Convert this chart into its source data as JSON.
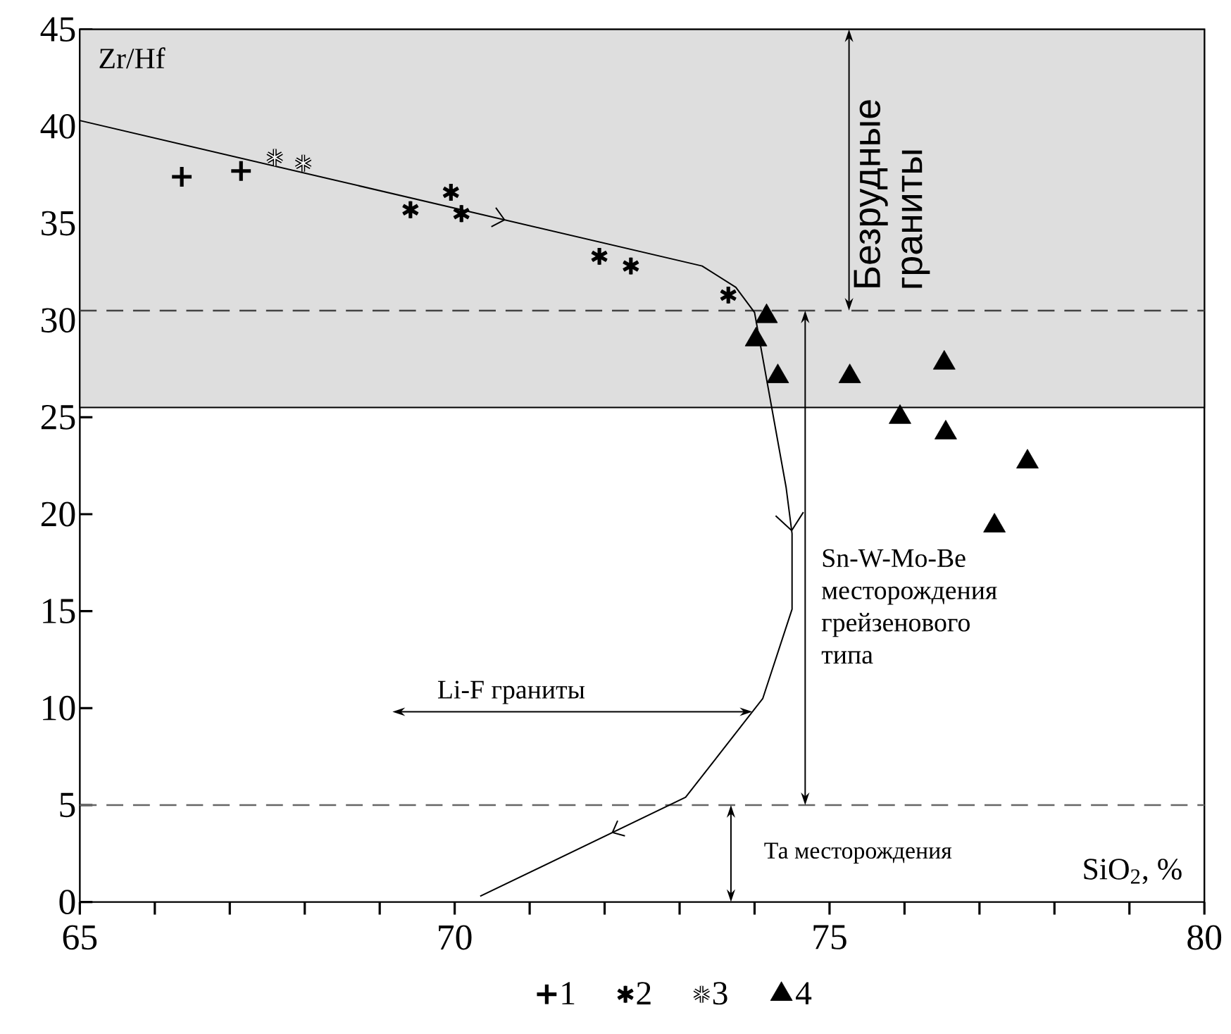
{
  "chart_data": {
    "type": "scatter",
    "xlabel": "SiO$_{2}$, %",
    "ylabel": "Zr/Hf",
    "xlim": [
      65,
      80
    ],
    "ylim": [
      0,
      45
    ],
    "xticks": [
      65,
      70,
      75,
      80
    ],
    "yticks": [
      0,
      5,
      10,
      15,
      20,
      25,
      30,
      35,
      40,
      45
    ],
    "legend": "bottom",
    "series": [
      {
        "name": "1",
        "color": "#000000",
        "marker": "cross",
        "x": [
          66.36,
          67.15
        ],
        "values": [
          37.4,
          37.7
        ]
      },
      {
        "name": "2",
        "color": "#000000",
        "x": [
          69.41,
          69.95,
          70.09,
          71.93,
          72.35,
          73.65
        ],
        "values": [
          35.7,
          36.6,
          35.5,
          33.3,
          32.8,
          31.3
        ]
      },
      {
        "name": "3",
        "color": "#ffffff",
        "x": [
          67.6,
          67.98
        ],
        "values": [
          38.4,
          38.1
        ]
      },
      {
        "name": "4",
        "color": "#000000",
        "marker": "triangle",
        "x": [
          74.16,
          74.02,
          74.31,
          75.27,
          76.53,
          75.94,
          76.55,
          77.64,
          77.2
        ],
        "values": [
          30.2,
          29.0,
          27.1,
          27.1,
          27.8,
          25.0,
          24.2,
          22.7,
          19.4
        ]
      },
      {
        "type": "line",
        "color": "#000000",
        "marker": "none",
        "x": [
          65.0,
          73.3,
          73.75,
          74.0,
          74.42,
          74.5,
          74.5,
          74.11,
          73.08,
          70.34
        ],
        "values": [
          40.3,
          32.8,
          31.7,
          30.4,
          21.4,
          19.0,
          15.1,
          10.5,
          5.4,
          0.3
        ]
      }
    ],
    "ref_lines": [
      {
        "axis": "y",
        "value": 30.5,
        "color": "#444444",
        "line_style": "dashed"
      },
      {
        "axis": "y",
        "value": 5,
        "color": "#666666",
        "line_style": "dashed"
      }
    ],
    "bands": [
      {
        "axis": "y",
        "from": 25.5,
        "to": 45,
        "color": "#dedede"
      }
    ],
    "annotations": [
      "Безрудные граниты",
      "Sn-W-Mo-Be месторождения грейзенового типа",
      "Li-F граниты",
      "Та месторождения"
    ]
  }
}
